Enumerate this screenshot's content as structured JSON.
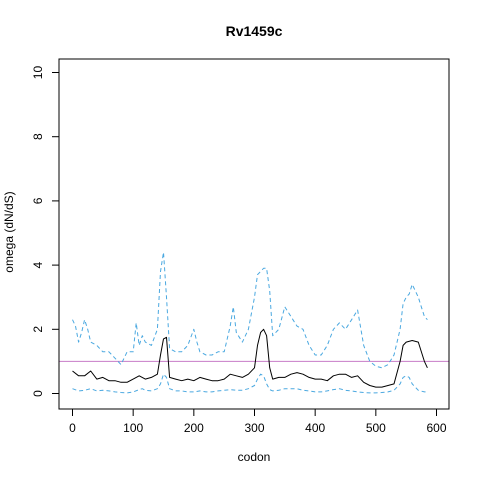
{
  "chart_data": {
    "type": "line",
    "title": "Rv1459c",
    "xlabel": "codon",
    "ylabel": "omega (dN/dS)",
    "xlim": [
      0,
      600
    ],
    "ylim": [
      0,
      10
    ],
    "x_ticks": [
      0,
      100,
      200,
      300,
      400,
      500,
      600
    ],
    "y_ticks": [
      0,
      2,
      4,
      6,
      8,
      10
    ],
    "grid": false,
    "reference_line": {
      "y": 1,
      "color": "#c77cc7"
    },
    "series": [
      {
        "role": "estimate",
        "color": "#000000",
        "style": "solid",
        "x": [
          0,
          10,
          20,
          30,
          40,
          50,
          60,
          70,
          80,
          90,
          100,
          110,
          120,
          130,
          140,
          145,
          150,
          155,
          160,
          170,
          180,
          190,
          200,
          210,
          220,
          230,
          240,
          250,
          260,
          270,
          280,
          290,
          300,
          305,
          310,
          315,
          320,
          325,
          330,
          340,
          350,
          360,
          370,
          380,
          390,
          400,
          410,
          420,
          430,
          440,
          450,
          460,
          470,
          480,
          490,
          500,
          510,
          520,
          530,
          540,
          545,
          550,
          560,
          570,
          580,
          585
        ],
        "y": [
          0.7,
          0.55,
          0.55,
          0.7,
          0.45,
          0.5,
          0.4,
          0.4,
          0.35,
          0.35,
          0.45,
          0.55,
          0.45,
          0.5,
          0.6,
          1.2,
          1.7,
          1.75,
          0.5,
          0.45,
          0.4,
          0.45,
          0.4,
          0.5,
          0.45,
          0.4,
          0.4,
          0.45,
          0.6,
          0.55,
          0.5,
          0.6,
          0.8,
          1.5,
          1.9,
          2.0,
          1.8,
          0.8,
          0.45,
          0.5,
          0.5,
          0.6,
          0.65,
          0.6,
          0.5,
          0.45,
          0.45,
          0.4,
          0.55,
          0.6,
          0.6,
          0.5,
          0.55,
          0.35,
          0.25,
          0.2,
          0.2,
          0.25,
          0.3,
          1.0,
          1.5,
          1.6,
          1.65,
          1.6,
          1.0,
          0.8
        ]
      },
      {
        "role": "upper bound",
        "color": "#4aa8e0",
        "style": "dashed",
        "x": [
          0,
          5,
          10,
          15,
          20,
          25,
          30,
          40,
          50,
          60,
          70,
          80,
          90,
          100,
          105,
          110,
          115,
          120,
          130,
          140,
          145,
          150,
          155,
          160,
          170,
          180,
          190,
          200,
          205,
          210,
          220,
          230,
          240,
          250,
          260,
          265,
          270,
          280,
          290,
          300,
          305,
          310,
          315,
          320,
          325,
          330,
          340,
          350,
          360,
          370,
          380,
          390,
          400,
          410,
          420,
          430,
          440,
          450,
          460,
          470,
          480,
          490,
          500,
          510,
          520,
          530,
          540,
          545,
          550,
          555,
          560,
          565,
          570,
          575,
          580,
          585
        ],
        "y": [
          2.3,
          2.1,
          1.6,
          1.9,
          2.3,
          2.0,
          1.6,
          1.5,
          1.3,
          1.3,
          1.1,
          0.9,
          1.3,
          1.3,
          2.2,
          1.5,
          1.8,
          1.6,
          1.5,
          2.0,
          3.8,
          4.4,
          3.0,
          1.4,
          1.3,
          1.3,
          1.5,
          2.0,
          1.6,
          1.3,
          1.2,
          1.2,
          1.3,
          1.3,
          2.1,
          2.7,
          1.9,
          1.6,
          2.0,
          3.0,
          3.7,
          3.8,
          3.9,
          3.9,
          3.2,
          1.8,
          2.0,
          2.7,
          2.4,
          2.1,
          2.0,
          1.5,
          1.2,
          1.2,
          1.5,
          2.0,
          2.2,
          2.0,
          2.3,
          2.6,
          1.5,
          1.0,
          0.85,
          0.8,
          0.9,
          1.2,
          2.0,
          2.8,
          3.0,
          3.1,
          3.4,
          3.2,
          3.0,
          2.7,
          2.4,
          2.3
        ]
      },
      {
        "role": "lower bound",
        "color": "#4aa8e0",
        "style": "dashed",
        "x": [
          0,
          10,
          20,
          30,
          40,
          50,
          60,
          70,
          80,
          90,
          100,
          110,
          115,
          120,
          130,
          140,
          145,
          150,
          155,
          160,
          170,
          180,
          190,
          200,
          210,
          220,
          230,
          240,
          250,
          260,
          270,
          280,
          290,
          300,
          305,
          310,
          315,
          320,
          325,
          330,
          340,
          350,
          360,
          370,
          380,
          390,
          400,
          410,
          420,
          430,
          440,
          450,
          460,
          470,
          480,
          490,
          500,
          510,
          520,
          530,
          540,
          545,
          550,
          555,
          560,
          570,
          580,
          585
        ],
        "y": [
          0.15,
          0.08,
          0.1,
          0.15,
          0.08,
          0.1,
          0.08,
          0.05,
          0.03,
          0.02,
          0.05,
          0.12,
          0.15,
          0.1,
          0.08,
          0.15,
          0.3,
          0.6,
          0.5,
          0.15,
          0.08,
          0.08,
          0.05,
          0.05,
          0.08,
          0.05,
          0.05,
          0.08,
          0.1,
          0.12,
          0.1,
          0.1,
          0.15,
          0.25,
          0.45,
          0.6,
          0.55,
          0.3,
          0.12,
          0.08,
          0.1,
          0.15,
          0.15,
          0.15,
          0.1,
          0.08,
          0.05,
          0.05,
          0.08,
          0.12,
          0.15,
          0.1,
          0.08,
          0.05,
          0.03,
          0.02,
          0.02,
          0.03,
          0.05,
          0.1,
          0.3,
          0.5,
          0.55,
          0.5,
          0.3,
          0.1,
          0.05,
          0.05
        ]
      }
    ]
  }
}
